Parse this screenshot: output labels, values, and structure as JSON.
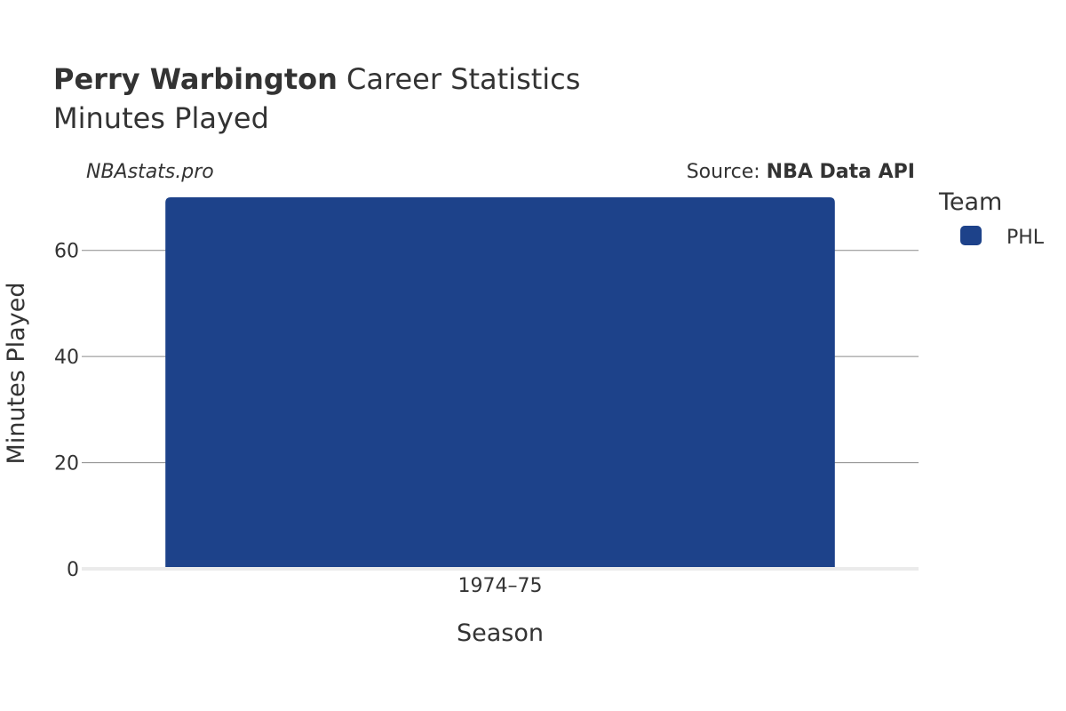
{
  "chart_data": {
    "type": "bar",
    "title_bold": "Perry Warbington",
    "title_rest": " Career Statistics",
    "subtitle": "Minutes Played",
    "watermark": "NBAstats.pro",
    "source_prefix": "Source: ",
    "source_bold": "NBA Data API",
    "xlabel": "Season",
    "ylabel": "Minutes Played",
    "categories": [
      "1974–75"
    ],
    "series": [
      {
        "name": "PHL",
        "values": [
          70
        ],
        "color": "#1d428a"
      }
    ],
    "ylim": [
      0,
      70
    ],
    "yticks": [
      0,
      20,
      40,
      60
    ],
    "grid": true,
    "legend": {
      "title": "Team",
      "placement": "right"
    }
  }
}
